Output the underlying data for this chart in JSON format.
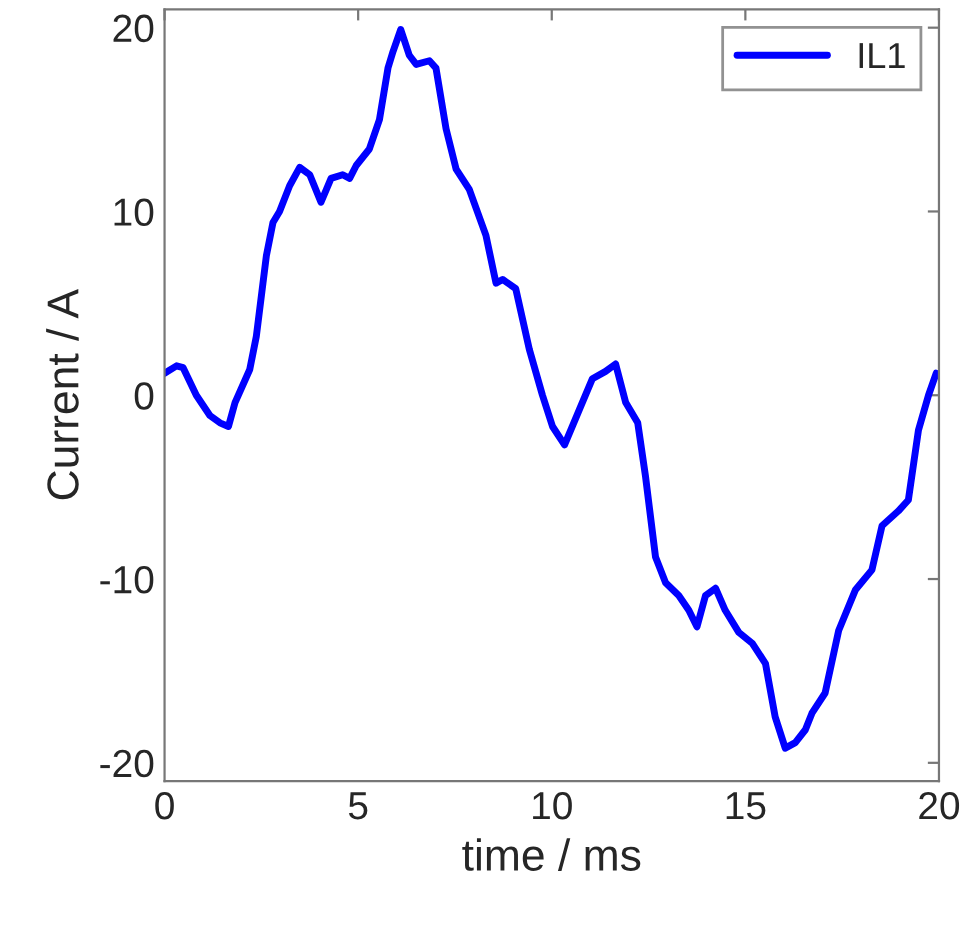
{
  "chart_data": {
    "type": "line",
    "xlabel": "time / ms",
    "ylabel": "Current / A",
    "xlim": [
      0,
      20
    ],
    "ylim": [
      -21,
      21
    ],
    "xticks": [
      0,
      5,
      10,
      15,
      20
    ],
    "yticks": [
      -20,
      -10,
      0,
      10,
      20
    ],
    "grid": false,
    "legend": "top right",
    "line_style": "solid",
    "marker": "none",
    "series": [
      {
        "name": "IL1",
        "color": "#0000ff",
        "x": [
          0,
          0.31,
          0.48,
          0.82,
          1.17,
          1.43,
          1.65,
          1.82,
          2.2,
          2.37,
          2.63,
          2.8,
          2.97,
          3.23,
          3.49,
          3.75,
          4.04,
          4.3,
          4.6,
          4.78,
          4.95,
          5.29,
          5.55,
          5.77,
          5.9,
          6.1,
          6.32,
          6.5,
          6.84,
          7.01,
          7.27,
          7.53,
          7.87,
          8.3,
          8.56,
          8.73,
          9.07,
          9.42,
          9.76,
          10.02,
          10.33,
          10.71,
          11.05,
          11.39,
          11.65,
          11.91,
          12.22,
          12.42,
          12.68,
          12.94,
          13.28,
          13.54,
          13.75,
          13.97,
          14.23,
          14.48,
          14.83,
          15.18,
          15.52,
          15.77,
          16.03,
          16.29,
          16.55,
          16.72,
          17.06,
          17.41,
          17.84,
          18.27,
          18.53,
          18.95,
          19.21,
          19.47,
          19.73,
          19.93
        ],
        "values": [
          1.2,
          1.6,
          1.5,
          0,
          -1.1,
          -1.5,
          -1.7,
          -0.4,
          1.4,
          3.2,
          7.6,
          9.4,
          10,
          11.4,
          12.4,
          12,
          10.5,
          11.8,
          12,
          11.8,
          12.5,
          13.4,
          15,
          17.8,
          18.7,
          19.9,
          18.5,
          18,
          18.2,
          17.8,
          14.5,
          12.3,
          11.2,
          8.7,
          6.1,
          6.3,
          5.8,
          2.5,
          0,
          -1.7,
          -2.7,
          -0.8,
          0.9,
          1.3,
          1.7,
          -0.4,
          -1.5,
          -4.4,
          -8.8,
          -10.2,
          -10.9,
          -11.7,
          -12.6,
          -10.9,
          -10.5,
          -11.7,
          -12.9,
          -13.5,
          -14.6,
          -17.5,
          -19.2,
          -18.9,
          -18.2,
          -17.3,
          -16.2,
          -12.8,
          -10.6,
          -9.5,
          -7.1,
          -6.3,
          -5.7,
          -1.9,
          0,
          1.2
        ]
      }
    ]
  }
}
